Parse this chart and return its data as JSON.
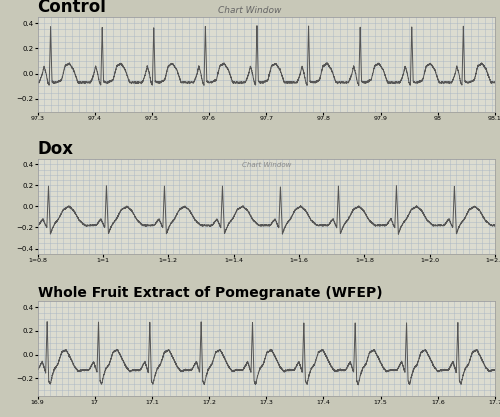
{
  "title": "Chart Window",
  "panel1_label": "Control",
  "panel2_label": "Dox",
  "panel3_label": "Whole Fruit Extract of Pomegranate (WFEP)",
  "bg_color": "#c8c8b8",
  "grid_color": "#a8b4c4",
  "line_color": "#555555",
  "panel_bg": "#dcdcd0",
  "ylim1": [
    -0.3,
    0.45
  ],
  "ylim2": [
    -0.45,
    0.45
  ],
  "ylim3": [
    -0.35,
    0.45
  ],
  "yticks1": [
    -0.2,
    -0.0,
    0.2,
    0.4
  ],
  "yticks2": [
    -0.4,
    -0.2,
    0.0,
    0.2,
    0.4
  ],
  "yticks3": [
    -0.2,
    0.0,
    0.2,
    0.4
  ],
  "label_fontsize_12": 12,
  "label_fontsize_10": 10,
  "title_fontsize": 6.5
}
